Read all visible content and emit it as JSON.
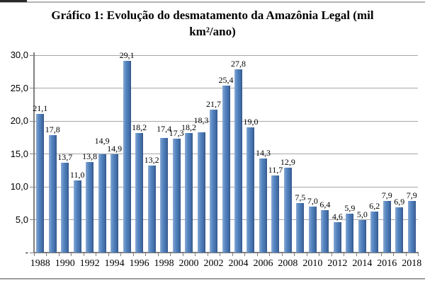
{
  "figure": {
    "title_lines": [
      "Gráfico 1: Evolução do desmatamento da Amazônia Legal (mil",
      "km²/ano)"
    ]
  },
  "chart_data": {
    "type": "bar",
    "title": "Gráfico 1: Evolução do desmatamento da Amazônia Legal (mil km²/ano)",
    "categories": [
      1988,
      1989,
      1990,
      1991,
      1992,
      1993,
      1994,
      1995,
      1996,
      1997,
      1998,
      1999,
      2000,
      2001,
      2002,
      2003,
      2004,
      2005,
      2006,
      2007,
      2008,
      2009,
      2010,
      2011,
      2012,
      2013,
      2014,
      2015,
      2016,
      2017,
      2018
    ],
    "values": [
      21.1,
      17.8,
      13.7,
      11.0,
      13.8,
      14.9,
      14.9,
      29.1,
      18.2,
      13.2,
      17.4,
      17.3,
      18.2,
      18.3,
      21.7,
      25.4,
      27.8,
      19.0,
      14.3,
      11.7,
      12.9,
      7.5,
      7.0,
      6.4,
      4.6,
      5.9,
      5.0,
      6.2,
      7.9,
      6.9,
      7.9
    ],
    "value_labels": [
      "21,1",
      "17,8",
      "13,7",
      "11,0",
      "13,8",
      "14,9",
      "14,9",
      "29,1",
      "18,2",
      "13,2",
      "17,4",
      "17,3",
      "18,2",
      "18,3",
      "21,7",
      "25,4",
      "27,8",
      "19,0",
      "14,3",
      "11,7",
      "12,9",
      "7,5",
      "7,0",
      "6,4",
      "4,6",
      "5,9",
      "5,0",
      "6,2",
      "7,9",
      "6,9",
      "7,9"
    ],
    "x_tick_labels": [
      "1988",
      "1990",
      "1992",
      "1994",
      "1996",
      "1998",
      "2000",
      "2002",
      "2004",
      "2006",
      "2008",
      "2010",
      "2012",
      "2014",
      "2016",
      "2018"
    ],
    "y_tick_labels": [
      "30,0",
      "25,0",
      "20,0",
      "15,0",
      "10,0",
      "5,0",
      "-"
    ],
    "ylim": [
      0,
      30
    ],
    "grid": true,
    "legend": "none",
    "xlabel": "",
    "ylabel": "",
    "colors": {
      "bar_fill": "#4f81bd",
      "bar_highlight": "#8fadd6",
      "bar_shadow": "#31568b",
      "gridline": "#a6a6a6",
      "axis": "#808080",
      "text": "#000000"
    }
  }
}
